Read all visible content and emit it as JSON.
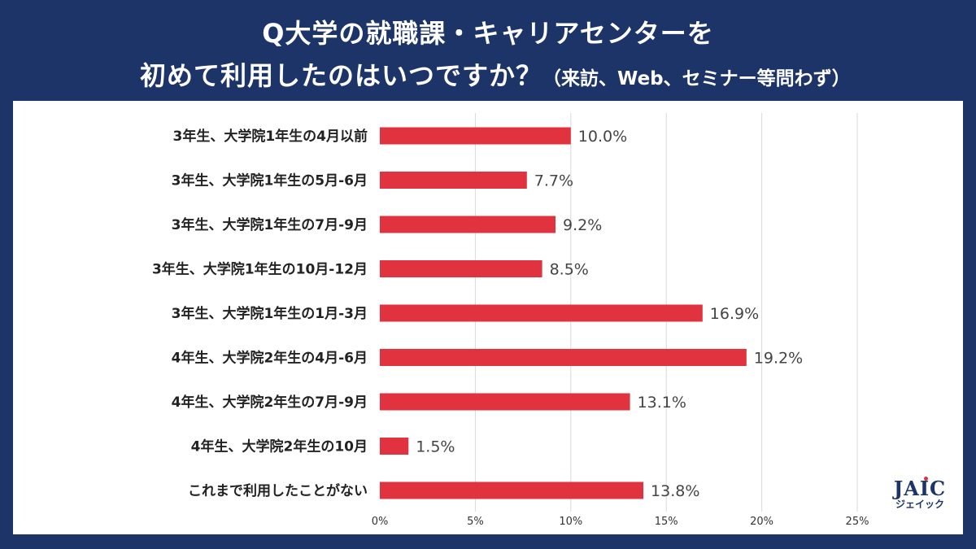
{
  "title": {
    "line1": "Q大学の就職課・キャリアセンターを",
    "line2": "初めて利用したのはいつですか？",
    "note": "（来訪、Web、セミナー等問わず）"
  },
  "logo": {
    "brand": "JAIC",
    "kana": "ジェイック"
  },
  "colors": {
    "background": "#1d3468",
    "bar": "#e0333f",
    "panel": "#ffffff"
  },
  "chart_data": {
    "type": "bar",
    "orientation": "horizontal",
    "categories": [
      "3年生、大学院1年生の4月以前",
      "3年生、大学院1年生の5月-6月",
      "3年生、大学院1年生の7月-9月",
      "3年生、大学院1年生の10月-12月",
      "3年生、大学院1年生の1月-3月",
      "4年生、大学院2年生の4月-6月",
      "4年生、大学院2年生の7月-9月",
      "4年生、大学院2年生の10月",
      "これまで利用したことがない"
    ],
    "values": [
      10.0,
      7.7,
      9.2,
      8.5,
      16.9,
      19.2,
      13.1,
      1.5,
      13.8
    ],
    "value_labels": [
      "10.0%",
      "7.7%",
      "9.2%",
      "8.5%",
      "16.9%",
      "19.2%",
      "13.1%",
      "1.5%",
      "13.8%"
    ],
    "xlim": [
      0,
      25
    ],
    "xticks": [
      0,
      5,
      10,
      15,
      20,
      25
    ],
    "xtick_labels": [
      "0%",
      "5%",
      "10%",
      "15%",
      "20%",
      "25%"
    ],
    "grid": true,
    "legend": "none"
  }
}
